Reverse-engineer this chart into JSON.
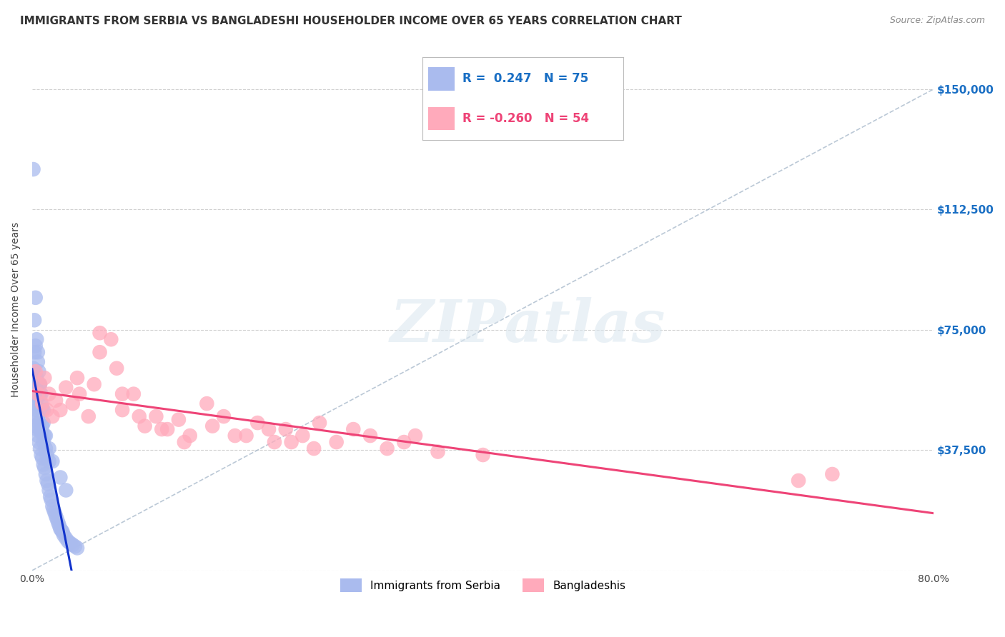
{
  "title": "IMMIGRANTS FROM SERBIA VS BANGLADESHI HOUSEHOLDER INCOME OVER 65 YEARS CORRELATION CHART",
  "source": "Source: ZipAtlas.com",
  "ylabel": "Householder Income Over 65 years",
  "xlim": [
    0.0,
    0.8
  ],
  "ylim": [
    0,
    162500
  ],
  "xticks": [
    0.0,
    0.2,
    0.4,
    0.6,
    0.8
  ],
  "xtick_labels": [
    "0.0%",
    "",
    "",
    "",
    "80.0%"
  ],
  "yticks": [
    0,
    37500,
    75000,
    112500,
    150000
  ],
  "ytick_labels": [
    "",
    "$37,500",
    "$75,000",
    "$112,500",
    "$150,000"
  ],
  "grid_color": "#d0d0d0",
  "background_color": "#ffffff",
  "series": [
    {
      "name": "Immigrants from Serbia",
      "R": 0.247,
      "N": 75,
      "color": "#aabbee",
      "line_color": "#1133cc",
      "x": [
        0.001,
        0.001,
        0.001,
        0.002,
        0.002,
        0.002,
        0.002,
        0.003,
        0.003,
        0.003,
        0.003,
        0.004,
        0.004,
        0.004,
        0.005,
        0.005,
        0.005,
        0.005,
        0.006,
        0.006,
        0.006,
        0.007,
        0.007,
        0.007,
        0.008,
        0.008,
        0.008,
        0.009,
        0.009,
        0.01,
        0.01,
        0.01,
        0.011,
        0.011,
        0.012,
        0.012,
        0.013,
        0.013,
        0.014,
        0.015,
        0.015,
        0.016,
        0.017,
        0.018,
        0.019,
        0.02,
        0.021,
        0.022,
        0.023,
        0.024,
        0.025,
        0.026,
        0.027,
        0.028,
        0.03,
        0.032,
        0.034,
        0.036,
        0.038,
        0.04,
        0.001,
        0.002,
        0.003,
        0.004,
        0.005,
        0.006,
        0.007,
        0.008,
        0.009,
        0.01,
        0.012,
        0.015,
        0.018,
        0.025,
        0.03
      ],
      "y": [
        52000,
        58000,
        63000,
        48000,
        55000,
        62000,
        68000,
        45000,
        52000,
        57000,
        70000,
        44000,
        50000,
        60000,
        42000,
        48000,
        54000,
        65000,
        40000,
        46000,
        58000,
        38000,
        44000,
        55000,
        36000,
        43000,
        52000,
        35000,
        45000,
        33000,
        40000,
        50000,
        32000,
        42000,
        30000,
        38000,
        28000,
        36000,
        27000,
        25000,
        34000,
        23000,
        22000,
        20000,
        19000,
        18000,
        17000,
        16000,
        15000,
        14000,
        13000,
        12500,
        12000,
        11000,
        10000,
        9000,
        8500,
        8000,
        7500,
        7000,
        125000,
        78000,
        85000,
        72000,
        68000,
        62000,
        58000,
        55000,
        50000,
        46000,
        42000,
        38000,
        34000,
        29000,
        25000
      ]
    },
    {
      "name": "Bangladeshis",
      "R": -0.26,
      "N": 54,
      "color": "#ffaabb",
      "line_color": "#ee4477",
      "x": [
        0.003,
        0.005,
        0.007,
        0.009,
        0.011,
        0.013,
        0.015,
        0.018,
        0.021,
        0.025,
        0.03,
        0.036,
        0.042,
        0.05,
        0.06,
        0.07,
        0.08,
        0.09,
        0.1,
        0.11,
        0.12,
        0.13,
        0.14,
        0.155,
        0.17,
        0.19,
        0.2,
        0.215,
        0.225,
        0.24,
        0.255,
        0.27,
        0.285,
        0.3,
        0.315,
        0.33,
        0.34,
        0.36,
        0.04,
        0.055,
        0.075,
        0.095,
        0.115,
        0.135,
        0.16,
        0.18,
        0.21,
        0.23,
        0.25,
        0.4,
        0.68,
        0.71,
        0.06,
        0.08
      ],
      "y": [
        62000,
        55000,
        58000,
        52000,
        60000,
        50000,
        55000,
        48000,
        53000,
        50000,
        57000,
        52000,
        55000,
        48000,
        74000,
        72000,
        50000,
        55000,
        45000,
        48000,
        44000,
        47000,
        42000,
        52000,
        48000,
        42000,
        46000,
        40000,
        44000,
        42000,
        46000,
        40000,
        44000,
        42000,
        38000,
        40000,
        42000,
        37000,
        60000,
        58000,
        63000,
        48000,
        44000,
        40000,
        45000,
        42000,
        44000,
        40000,
        38000,
        36000,
        28000,
        30000,
        68000,
        55000
      ]
    }
  ],
  "watermark_text": "ZIPatlas",
  "title_fontsize": 11,
  "label_fontsize": 10,
  "tick_fontsize": 10,
  "ylabel_color": "#444444",
  "ytick_color": "#1a6fc4",
  "xtick_color": "#444444",
  "title_color": "#333333",
  "source_color": "#888888"
}
